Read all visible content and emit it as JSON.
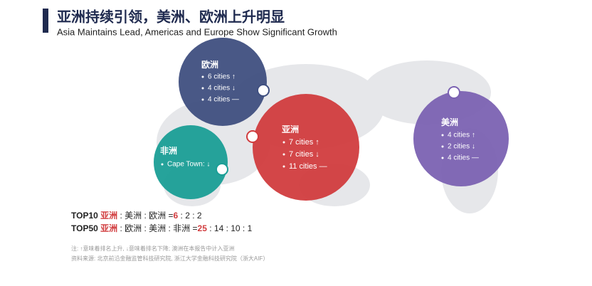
{
  "header": {
    "title": "亚洲持续引领，美洲、欧洲上升明显",
    "subtitle": "Asia Maintains Lead, Americas and Europe Show Significant Growth"
  },
  "regions": [
    {
      "name": "欧洲",
      "items": [
        "6 cities ↑",
        "4 cities ↓",
        "4 cities —"
      ]
    },
    {
      "name": "非洲",
      "items": [
        "Cape Town: ↓"
      ]
    },
    {
      "name": "亚洲",
      "items": [
        "7 cities ↑",
        "7 cities ↓",
        "11 cities —"
      ]
    },
    {
      "name": "美洲",
      "items": [
        "4 cities ↑",
        "2 cities ↓",
        "4 cities —"
      ]
    }
  ],
  "ratios": [
    {
      "label": "TOP10",
      "lead": "亚洲",
      "rest": " : 美洲 : 欧洲 =",
      "lead_value": "6",
      "rest_values": " : 2 : 2"
    },
    {
      "label": "TOP50",
      "lead": "亚洲",
      "rest": " : 欧洲 : 美洲 : 非洲 =",
      "lead_value": "25",
      "rest_values": " : 14 : 10 : 1"
    }
  ],
  "notes": [
    "注: ↑意味着排名上升, ↓意味着排名下降; 澳洲在本报告中计入亚洲",
    "资料来源: 北京前沿金融监管科技研究院, 浙江大学金融科技研究院（浙大AIF）"
  ]
}
